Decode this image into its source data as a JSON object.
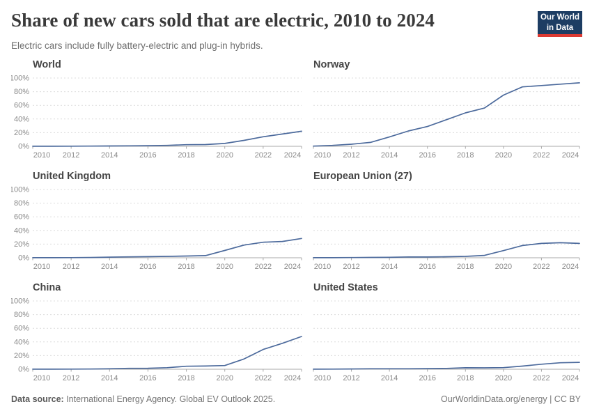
{
  "header": {
    "title": "Share of new cars sold that are electric, 2010 to 2024",
    "subtitle": "Electric cars include fully battery-electric and plug-in hybrids.",
    "logo": {
      "line1": "Our World",
      "line2": "in Data"
    }
  },
  "footer": {
    "source_label": "Data source:",
    "source_text": " International Energy Agency. Global EV Outlook 2025.",
    "link_text": "OurWorldinData.org/energy | CC BY"
  },
  "colors": {
    "line": "#4c6a9c",
    "logo_bg": "#1d3d63",
    "logo_stripe": "#dc3a32",
    "grid": "#dcdcdc",
    "axis": "#a9a9a9",
    "axis_text": "#8a8a8a",
    "title_text": "#3a3a3a",
    "subtitle_text": "#6d6d6d",
    "panel_title_text": "#454545",
    "footer_text": "#757575"
  },
  "axes": {
    "x": [
      2010,
      2011,
      2012,
      2013,
      2014,
      2015,
      2016,
      2017,
      2018,
      2019,
      2020,
      2021,
      2022,
      2023,
      2024
    ],
    "xticks": [
      2010,
      2012,
      2014,
      2016,
      2018,
      2020,
      2022,
      2024
    ],
    "ylim": [
      0,
      100
    ],
    "yticks": [
      "0%",
      "20%",
      "40%",
      "60%",
      "80%",
      "100%"
    ],
    "grid": "horizontal-dashed",
    "legend": "none"
  },
  "chart_data": [
    {
      "type": "line",
      "title": "World",
      "x": [
        2010,
        2011,
        2012,
        2013,
        2014,
        2015,
        2016,
        2017,
        2018,
        2019,
        2020,
        2021,
        2022,
        2023,
        2024
      ],
      "values": [
        0.1,
        0.1,
        0.2,
        0.3,
        0.5,
        0.7,
        0.9,
        1.3,
        2.3,
        2.5,
        4.2,
        8.7,
        14,
        18,
        22
      ],
      "ylim": [
        0,
        100
      ],
      "y_axis_labels_visible": true
    },
    {
      "type": "line",
      "title": "Norway",
      "x": [
        2010,
        2011,
        2012,
        2013,
        2014,
        2015,
        2016,
        2017,
        2018,
        2019,
        2020,
        2021,
        2022,
        2023,
        2024
      ],
      "values": [
        0.3,
        1.3,
        3.1,
        5.7,
        13.7,
        22.4,
        29,
        39,
        49,
        56,
        75,
        87,
        89,
        91,
        93
      ],
      "ylim": [
        0,
        100
      ],
      "y_axis_labels_visible": false
    },
    {
      "type": "line",
      "title": "United Kingdom",
      "x": [
        2010,
        2011,
        2012,
        2013,
        2014,
        2015,
        2016,
        2017,
        2018,
        2019,
        2020,
        2021,
        2022,
        2023,
        2024
      ],
      "values": [
        0.1,
        0.1,
        0.2,
        0.4,
        0.9,
        1.3,
        1.6,
        2.0,
        2.6,
        3.2,
        10.7,
        18.6,
        22.8,
        23.9,
        28.3
      ],
      "ylim": [
        0,
        100
      ],
      "y_axis_labels_visible": true
    },
    {
      "type": "line",
      "title": "European Union (27)",
      "x": [
        2010,
        2011,
        2012,
        2013,
        2014,
        2015,
        2016,
        2017,
        2018,
        2019,
        2020,
        2021,
        2022,
        2023,
        2024
      ],
      "values": [
        0.1,
        0.1,
        0.3,
        0.5,
        0.6,
        1.2,
        1.1,
        1.5,
        2.0,
        3.5,
        10.5,
        18,
        21,
        22,
        21
      ],
      "ylim": [
        0,
        100
      ],
      "y_axis_labels_visible": false
    },
    {
      "type": "line",
      "title": "China",
      "x": [
        2010,
        2011,
        2012,
        2013,
        2014,
        2015,
        2016,
        2017,
        2018,
        2019,
        2020,
        2021,
        2022,
        2023,
        2024
      ],
      "values": [
        0.1,
        0.1,
        0.2,
        0.3,
        0.7,
        1.3,
        1.4,
        2.2,
        4.4,
        4.7,
        5.4,
        15,
        29,
        38,
        48
      ],
      "ylim": [
        0,
        100
      ],
      "y_axis_labels_visible": true
    },
    {
      "type": "line",
      "title": "United States",
      "x": [
        2010,
        2011,
        2012,
        2013,
        2014,
        2015,
        2016,
        2017,
        2018,
        2019,
        2020,
        2021,
        2022,
        2023,
        2024
      ],
      "values": [
        0.1,
        0.2,
        0.4,
        0.7,
        0.7,
        0.7,
        0.9,
        1.2,
        2.1,
        2.0,
        2.3,
        4.6,
        7.3,
        9.5,
        10.1
      ],
      "ylim": [
        0,
        100
      ],
      "y_axis_labels_visible": false
    }
  ]
}
